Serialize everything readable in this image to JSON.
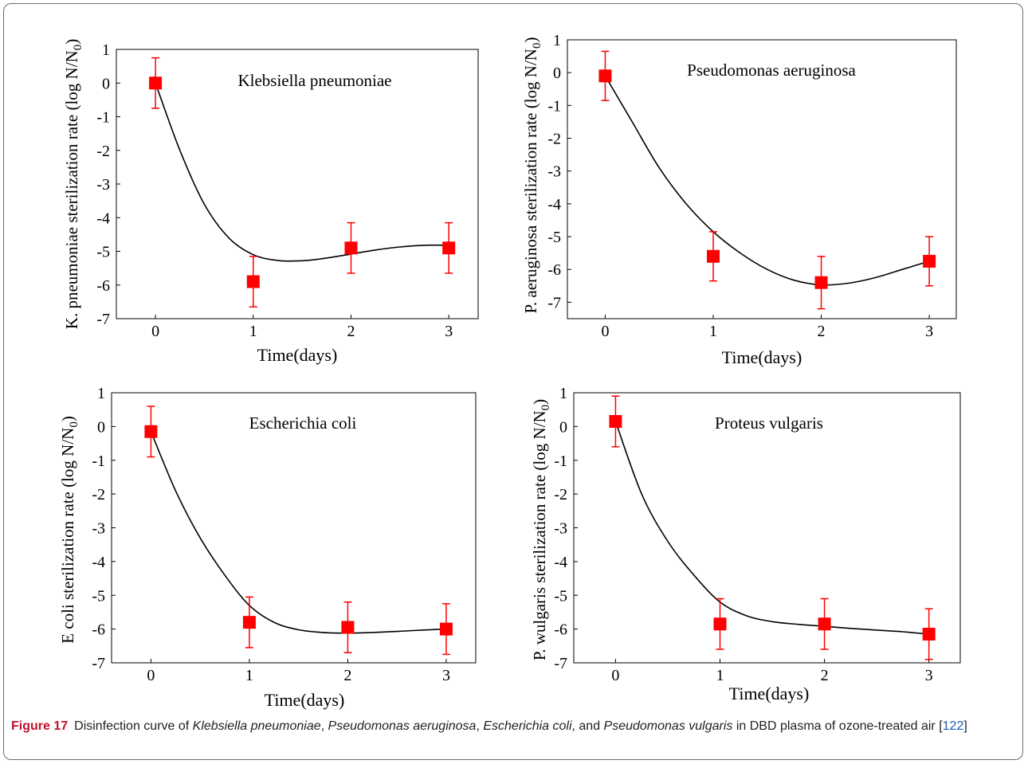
{
  "caption": {
    "label": "Figure 17",
    "text_1": "Disinfection curve of ",
    "species_1": "Klebsiella pneumoniae",
    "sep_1": ", ",
    "species_2": "Pseudomonas aeruginosa",
    "sep_2": ", ",
    "species_3": "Escherichia coli",
    "sep_3": ", and ",
    "species_4": "Pseudomonas vulgaris",
    "text_2": " in DBD plasma of ozone-treated air [",
    "ref": "122",
    "text_3": "]"
  },
  "colors": {
    "marker": "#ff0000",
    "curve": "#000000",
    "axis": "#000000"
  },
  "chart_data": [
    {
      "type": "scatter",
      "title": "Klebsiella pneumoniae",
      "xlabel": "Time(days)",
      "ylabel": "K. pneumoniae sterilization rate (log N/N0)",
      "xlim": [
        -0.4,
        3.3
      ],
      "ylim": [
        -7,
        1
      ],
      "xticks": [
        0,
        1,
        2,
        3
      ],
      "yticks": [
        1,
        0,
        -1,
        -2,
        -3,
        -4,
        -5,
        -6,
        -7
      ],
      "x": [
        0,
        1,
        2,
        3
      ],
      "y": [
        0.0,
        -5.9,
        -4.9,
        -4.9
      ],
      "error": [
        0.75,
        0.75,
        0.75,
        0.75
      ],
      "curve": [
        [
          0,
          0.0
        ],
        [
          0.25,
          -2.0
        ],
        [
          0.5,
          -3.6
        ],
        [
          0.75,
          -4.6
        ],
        [
          1.0,
          -5.1
        ],
        [
          1.25,
          -5.27
        ],
        [
          1.5,
          -5.28
        ],
        [
          1.75,
          -5.2
        ],
        [
          2.0,
          -5.08
        ],
        [
          2.25,
          -4.96
        ],
        [
          2.5,
          -4.87
        ],
        [
          2.75,
          -4.82
        ],
        [
          3.0,
          -4.82
        ]
      ]
    },
    {
      "type": "scatter",
      "title": "Pseudomonas aeruginosa",
      "xlabel": "Time(days)",
      "ylabel": "P. aeruginosa sterilization rate (log N/N0)",
      "xlim": [
        -0.35,
        3.25
      ],
      "ylim": [
        -7.5,
        1
      ],
      "xticks": [
        0,
        1,
        2,
        3
      ],
      "yticks": [
        1,
        0,
        -1,
        -2,
        -3,
        -4,
        -5,
        -6,
        -7
      ],
      "x": [
        0,
        1,
        2,
        3
      ],
      "y": [
        -0.1,
        -5.6,
        -6.4,
        -5.75
      ],
      "error": [
        0.75,
        0.75,
        0.8,
        0.75
      ],
      "curve": [
        [
          0,
          -0.1
        ],
        [
          0.25,
          -1.5
        ],
        [
          0.5,
          -2.9
        ],
        [
          0.75,
          -4.0
        ],
        [
          1.0,
          -4.85
        ],
        [
          1.25,
          -5.5
        ],
        [
          1.5,
          -6.0
        ],
        [
          1.75,
          -6.33
        ],
        [
          2.0,
          -6.47
        ],
        [
          2.25,
          -6.42
        ],
        [
          2.5,
          -6.25
        ],
        [
          2.75,
          -6.0
        ],
        [
          3.0,
          -5.75
        ]
      ]
    },
    {
      "type": "scatter",
      "title": "Escherichia coli",
      "xlabel": "Time(days)",
      "ylabel": "E coli sterilization rate (log N/N0)",
      "xlim": [
        -0.4,
        3.3
      ],
      "ylim": [
        -7,
        1
      ],
      "xticks": [
        0,
        1,
        2,
        3
      ],
      "yticks": [
        1,
        0,
        -1,
        -2,
        -3,
        -4,
        -5,
        -6,
        -7
      ],
      "x": [
        0,
        1,
        2,
        3
      ],
      "y": [
        -0.15,
        -5.8,
        -5.95,
        -6.0
      ],
      "error": [
        0.75,
        0.75,
        0.75,
        0.75
      ],
      "curve": [
        [
          0,
          -0.15
        ],
        [
          0.25,
          -1.9
        ],
        [
          0.5,
          -3.3
        ],
        [
          0.75,
          -4.4
        ],
        [
          1.0,
          -5.3
        ],
        [
          1.25,
          -5.8
        ],
        [
          1.5,
          -6.02
        ],
        [
          1.75,
          -6.1
        ],
        [
          2.0,
          -6.12
        ],
        [
          2.25,
          -6.1
        ],
        [
          2.5,
          -6.07
        ],
        [
          2.75,
          -6.03
        ],
        [
          3.0,
          -6.0
        ]
      ]
    },
    {
      "type": "scatter",
      "title": "Proteus vulgaris",
      "xlabel": "Time(days)",
      "ylabel": "P. wulgaris sterilization rate (log N/N0)",
      "xlim": [
        -0.4,
        3.3
      ],
      "ylim": [
        -7,
        1
      ],
      "xticks": [
        0,
        1,
        2,
        3
      ],
      "yticks": [
        1,
        0,
        -1,
        -2,
        -3,
        -4,
        -5,
        -6,
        -7
      ],
      "x": [
        0,
        1,
        2,
        3
      ],
      "y": [
        0.15,
        -5.85,
        -5.85,
        -6.15
      ],
      "error": [
        0.75,
        0.75,
        0.75,
        0.75
      ],
      "curve": [
        [
          0,
          0.15
        ],
        [
          0.25,
          -2.0
        ],
        [
          0.5,
          -3.4
        ],
        [
          0.75,
          -4.4
        ],
        [
          1.0,
          -5.2
        ],
        [
          1.25,
          -5.6
        ],
        [
          1.5,
          -5.78
        ],
        [
          1.75,
          -5.86
        ],
        [
          2.0,
          -5.92
        ],
        [
          2.25,
          -5.98
        ],
        [
          2.5,
          -6.03
        ],
        [
          2.75,
          -6.08
        ],
        [
          3.0,
          -6.15
        ]
      ]
    }
  ]
}
